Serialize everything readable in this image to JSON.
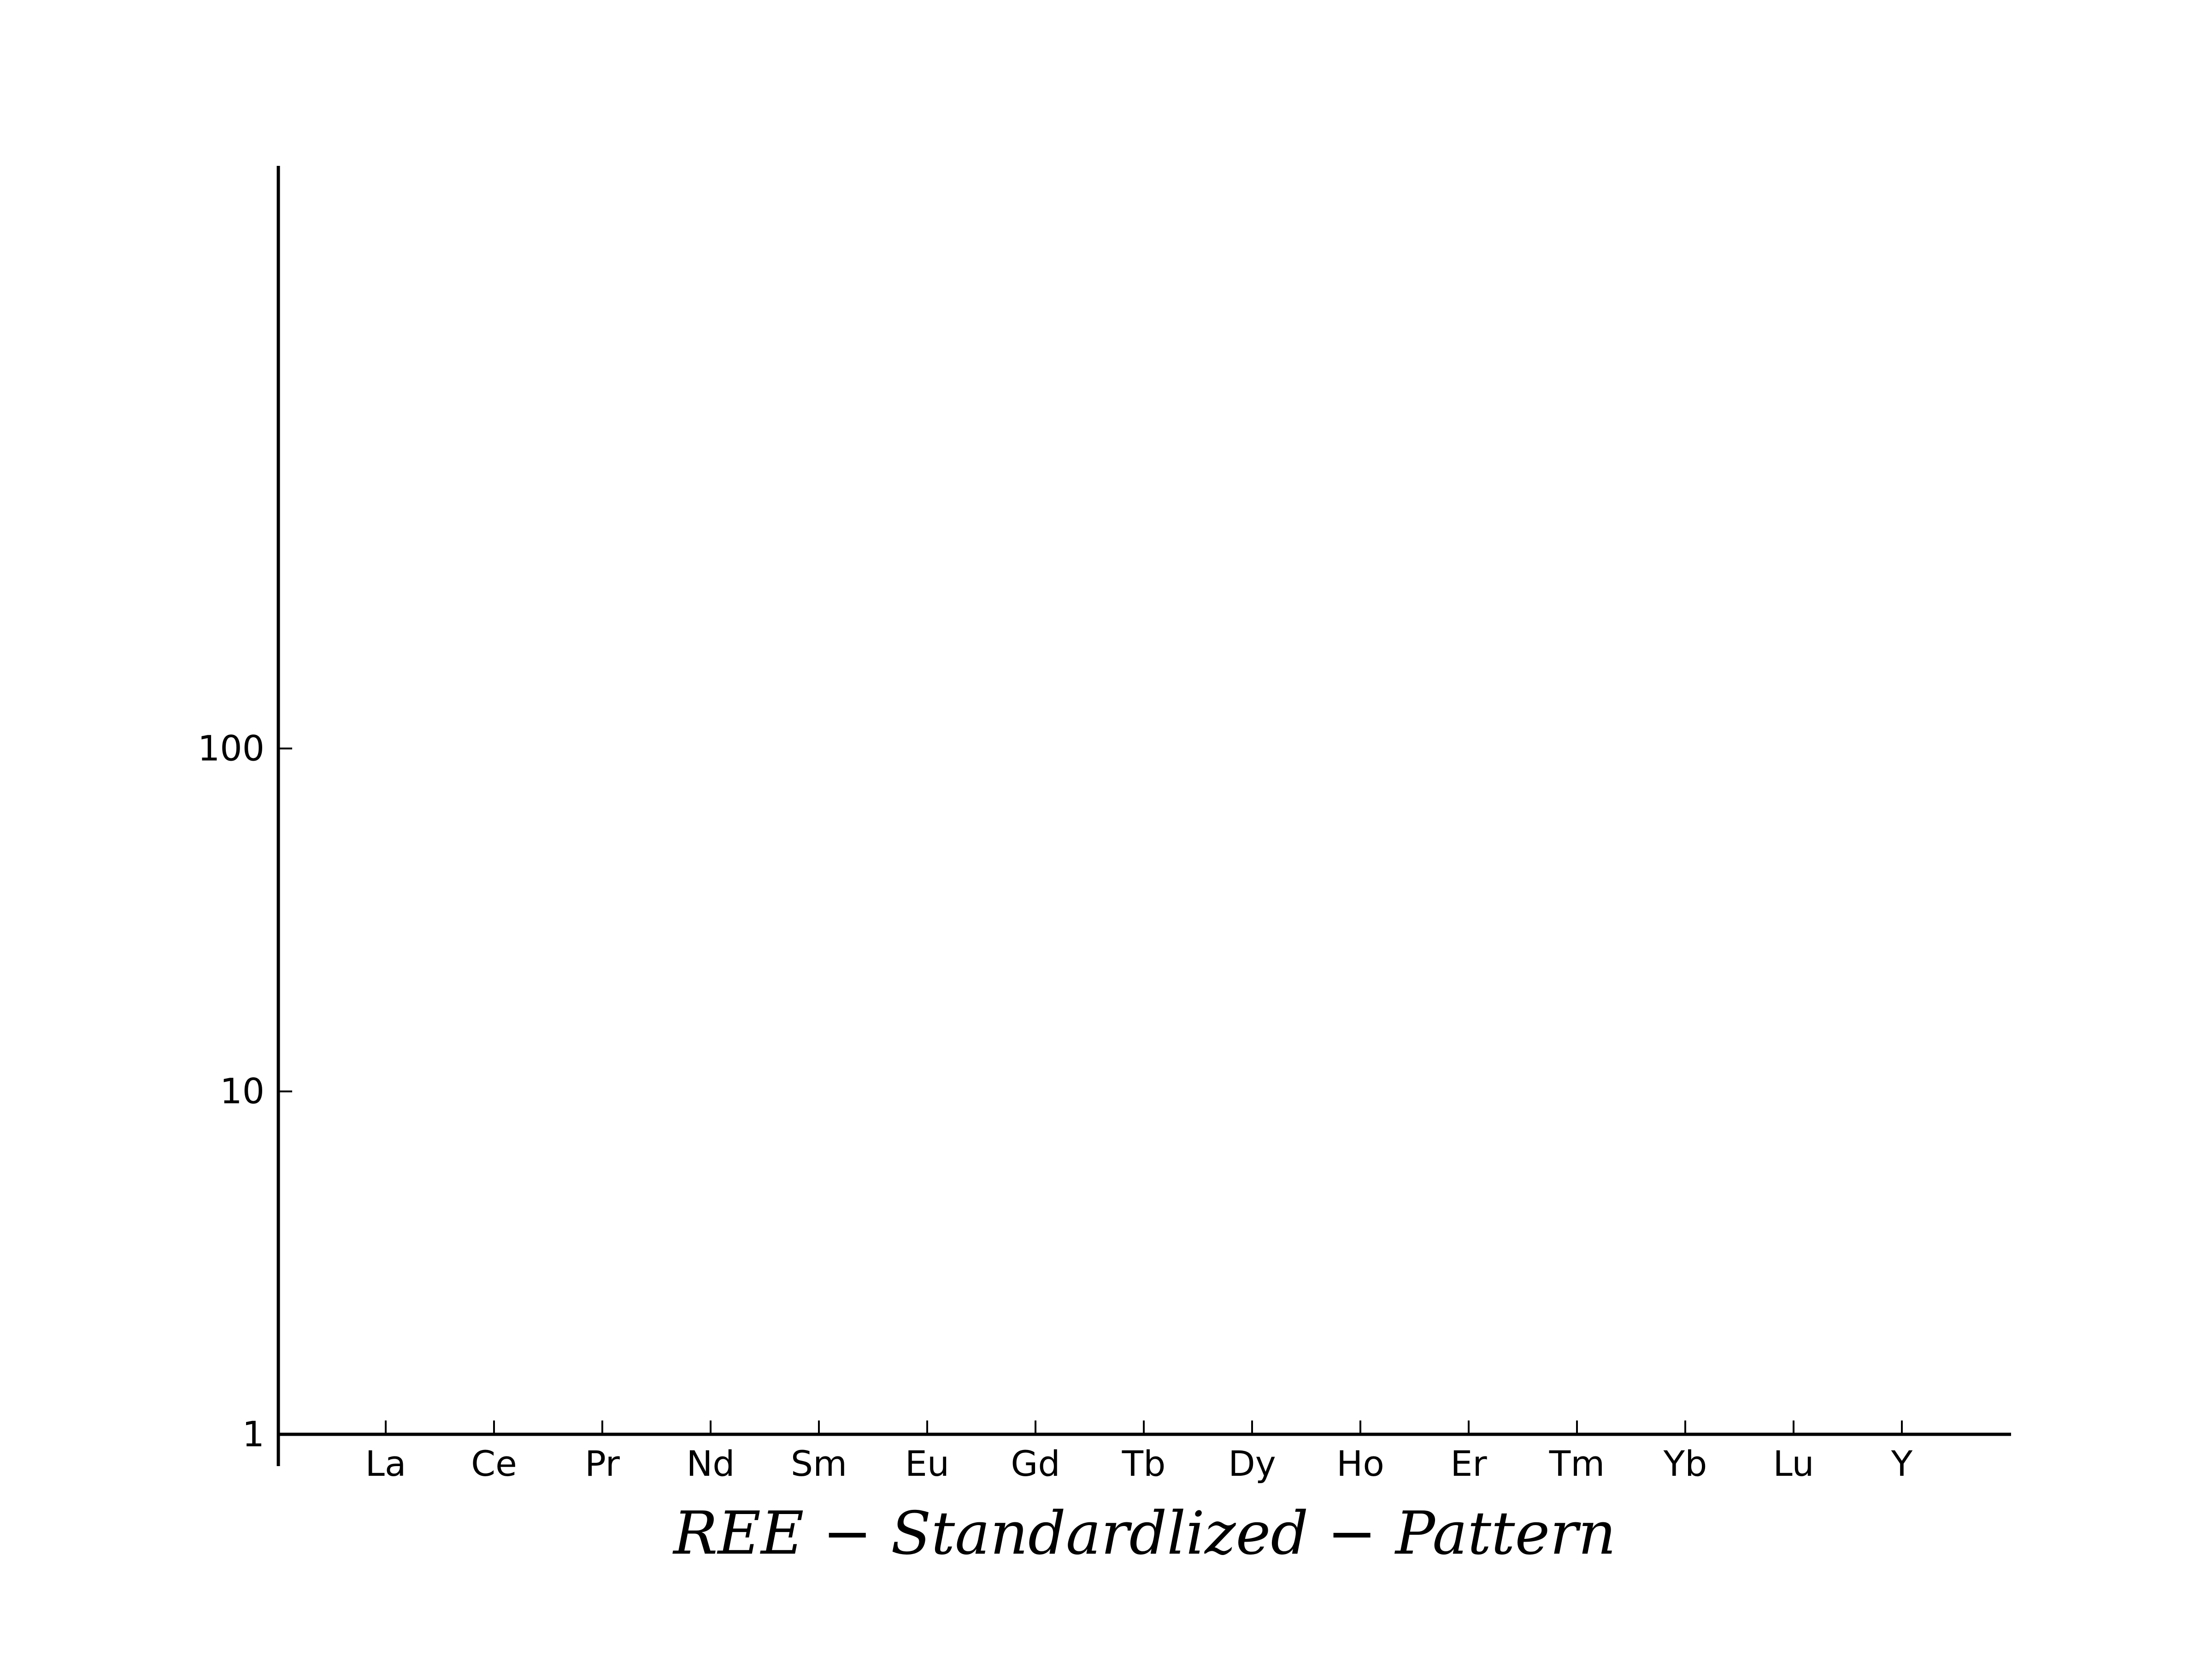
{
  "chart_data": {
    "type": "line",
    "title": "",
    "xlabel": "REE − Standardlized − Pattern",
    "ylabel": "",
    "categories": [
      "La",
      "Ce",
      "Pr",
      "Nd",
      "Sm",
      "Eu",
      "Gd",
      "Tb",
      "Dy",
      "Ho",
      "Er",
      "Tm",
      "Yb",
      "Lu",
      "Y"
    ],
    "yscale": "log",
    "ylim": [
      1,
      5000
    ],
    "yticks": [
      {
        "value": 1,
        "label": "1"
      },
      {
        "value": 10,
        "label": "10"
      },
      {
        "value": 100,
        "label": "100"
      }
    ],
    "series": [],
    "grid": false,
    "legend": "none",
    "colors": {
      "axis": "#000000",
      "background": "#ffffff"
    }
  }
}
